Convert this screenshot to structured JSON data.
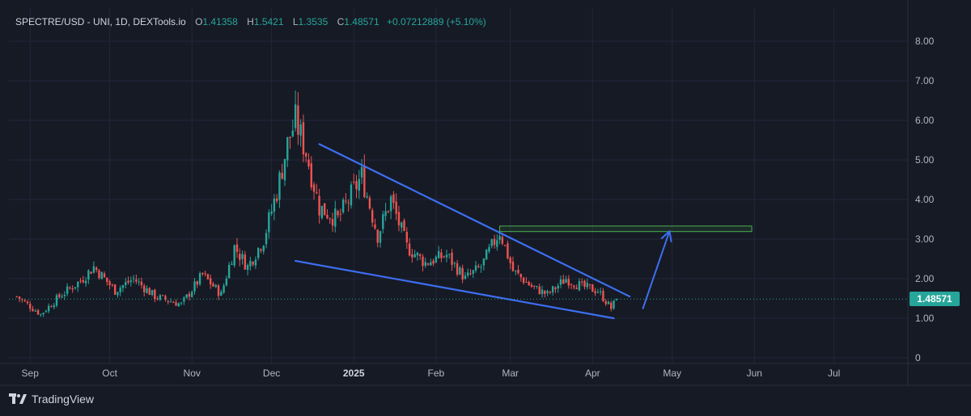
{
  "header": {
    "symbol": "SPECTRE/USD - UNI, 1D, DEXTools.io",
    "open_label": "O",
    "open": "1.41358",
    "high_label": "H",
    "high": "1.5421",
    "low_label": "L",
    "low": "1.3535",
    "close_label": "C",
    "close": "1.48571",
    "change": "+0.07212889 (+5.10%)"
  },
  "price_badge": "1.48571",
  "brand": "TradingView",
  "colors": {
    "up": "#26a69a",
    "down": "#ef5350",
    "trendline": "#3d6ff2",
    "zone": "#4caf50",
    "background": "#161a25",
    "grid": "#22263a"
  },
  "chart_data": {
    "type": "candlestick",
    "y_axis": {
      "ticks": [
        "0",
        "1.00",
        "2.00",
        "3.00",
        "4.00",
        "5.00",
        "6.00",
        "7.00",
        "8.00"
      ],
      "range": [
        0,
        8.6
      ]
    },
    "x_axis": {
      "labels": [
        "Sep",
        "Oct",
        "Nov",
        "Dec",
        "2025",
        "Feb",
        "Mar",
        "Apr",
        "May",
        "Jun",
        "Jul"
      ],
      "bold": [
        "2025"
      ]
    },
    "last_price": 1.48571,
    "series": [
      {
        "date": "2024-08-27",
        "price": 1.55
      },
      {
        "date": "2024-09-05",
        "price": 1.1
      },
      {
        "date": "2024-09-12",
        "price": 1.55
      },
      {
        "date": "2024-09-20",
        "price": 1.95
      },
      {
        "date": "2024-09-25",
        "price": 2.3
      },
      {
        "date": "2024-10-03",
        "price": 1.7
      },
      {
        "date": "2024-10-10",
        "price": 2.0
      },
      {
        "date": "2024-10-18",
        "price": 1.55
      },
      {
        "date": "2024-10-28",
        "price": 1.35
      },
      {
        "date": "2024-11-05",
        "price": 2.1
      },
      {
        "date": "2024-11-12",
        "price": 1.6
      },
      {
        "date": "2024-11-17",
        "price": 2.8
      },
      {
        "date": "2024-11-22",
        "price": 2.3
      },
      {
        "date": "2024-11-28",
        "price": 3.0
      },
      {
        "date": "2024-12-03",
        "price": 4.2
      },
      {
        "date": "2024-12-07",
        "price": 5.4
      },
      {
        "date": "2024-12-10",
        "price": 6.0
      },
      {
        "date": "2024-12-14",
        "price": 5.2
      },
      {
        "date": "2024-12-19",
        "price": 3.8
      },
      {
        "date": "2024-12-26",
        "price": 3.5
      },
      {
        "date": "2025-01-04",
        "price": 4.6
      },
      {
        "date": "2025-01-10",
        "price": 3.1
      },
      {
        "date": "2025-01-15",
        "price": 4.0
      },
      {
        "date": "2025-01-21",
        "price": 2.8
      },
      {
        "date": "2025-01-28",
        "price": 2.4
      },
      {
        "date": "2025-02-05",
        "price": 2.6
      },
      {
        "date": "2025-02-12",
        "price": 2.0
      },
      {
        "date": "2025-02-18",
        "price": 2.3
      },
      {
        "date": "2025-02-25",
        "price": 3.2
      },
      {
        "date": "2025-03-02",
        "price": 2.2
      },
      {
        "date": "2025-03-09",
        "price": 1.8
      },
      {
        "date": "2025-03-15",
        "price": 1.6
      },
      {
        "date": "2025-03-22",
        "price": 2.0
      },
      {
        "date": "2025-03-28",
        "price": 1.8
      },
      {
        "date": "2025-04-03",
        "price": 1.7
      },
      {
        "date": "2025-04-08",
        "price": 1.25
      },
      {
        "date": "2025-04-10",
        "price": 1.48571
      }
    ],
    "annotations": {
      "upper_trendline": [
        {
          "date": "2024-12-19",
          "price": 5.4
        },
        {
          "date": "2025-04-15",
          "price": 1.55
        }
      ],
      "lower_trendline": [
        {
          "date": "2024-12-10",
          "price": 2.45
        },
        {
          "date": "2025-04-09",
          "price": 1.0
        }
      ],
      "resistance_zone": {
        "from": "2025-02-25",
        "to": "2025-05-31",
        "low": 3.19,
        "high": 3.33
      },
      "projection_arrow": [
        {
          "date": "2025-04-20",
          "price": 1.25
        },
        {
          "date": "2025-04-30",
          "price": 3.2
        }
      ]
    }
  }
}
